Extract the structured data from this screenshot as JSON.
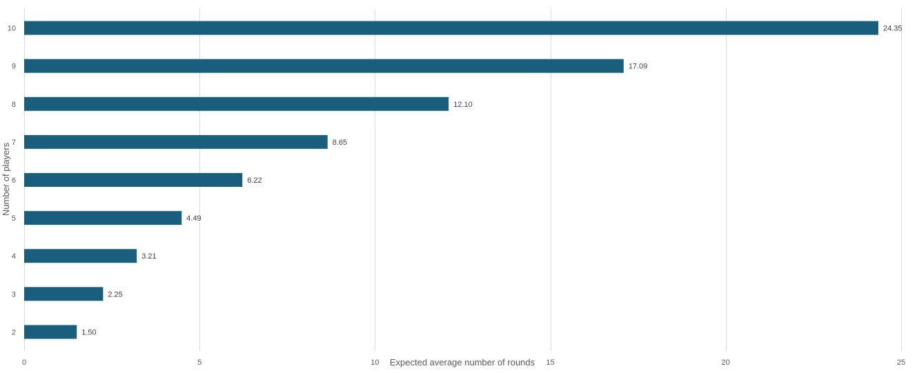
{
  "chart_data": {
    "type": "bar",
    "orientation": "horizontal",
    "title": "",
    "xlabel": "Expected average number of rounds",
    "ylabel": "Number of players",
    "categories": [
      "2",
      "3",
      "4",
      "5",
      "6",
      "7",
      "8",
      "9",
      "10"
    ],
    "values": [
      1.5,
      2.25,
      3.21,
      4.49,
      6.22,
      8.65,
      12.1,
      17.09,
      24.35
    ],
    "data_labels": [
      "1.50",
      "2.25",
      "3.21",
      "4.49",
      "6.22",
      "8.65",
      "12.10",
      "17.09",
      "24.35"
    ],
    "xlim": [
      0,
      25
    ],
    "xticks": [
      0,
      5,
      10,
      15,
      20,
      25
    ],
    "xtick_labels": [
      "0",
      "5",
      "10",
      "15",
      "20",
      "25"
    ],
    "grid": "vertical",
    "legend": "none",
    "bar_color": "#1a5e7e",
    "grid_color": "#d9d9d9",
    "text_color": "#595959"
  }
}
